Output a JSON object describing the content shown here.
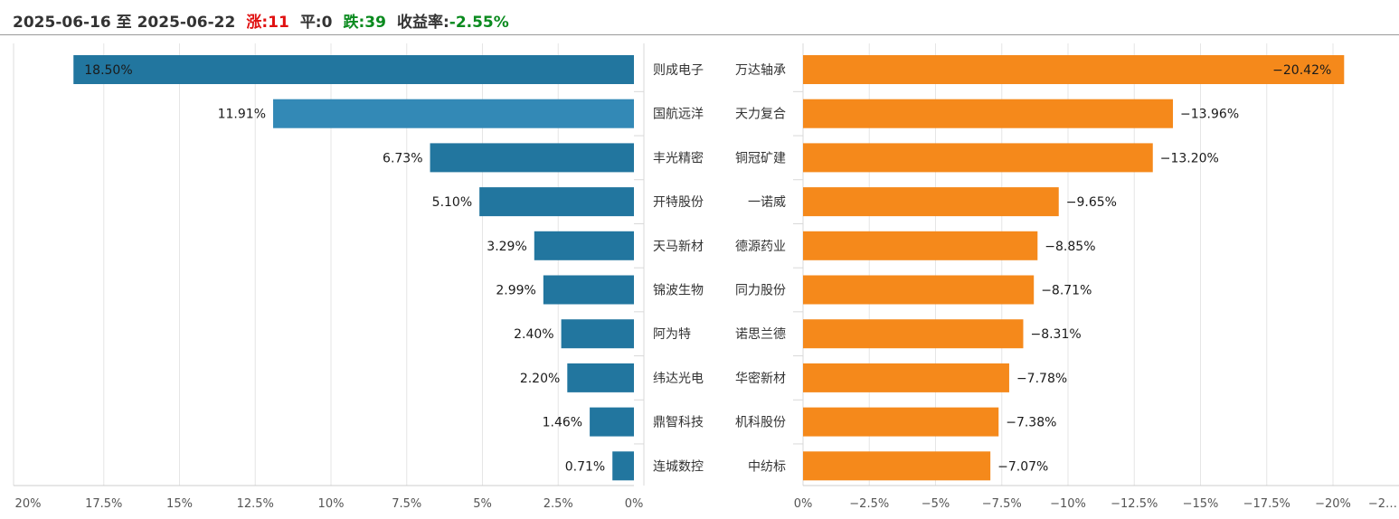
{
  "header": {
    "date_range": "2025-06-16 至 2025-06-22",
    "up_label": "涨:",
    "up_count": "11",
    "flat_label": "平:",
    "flat_count": "0",
    "down_label": "跌:",
    "down_count": "39",
    "return_label": "收益率:",
    "return_value": "-2.55%"
  },
  "chart_data": [
    {
      "type": "bar",
      "orientation": "horizontal",
      "direction": "leftward",
      "categories": [
        "则成电子",
        "国航远洋",
        "丰光精密",
        "开特股份",
        "天马新材",
        "锦波生物",
        "阿为特",
        "纬达光电",
        "鼎智科技",
        "连城数控"
      ],
      "values": [
        18.5,
        11.91,
        6.73,
        5.1,
        3.29,
        2.99,
        2.4,
        2.2,
        1.46,
        0.71
      ],
      "labels": [
        "18.50%",
        "11.91%",
        "6.73%",
        "5.10%",
        "3.29%",
        "2.99%",
        "2.40%",
        "2.20%",
        "1.46%",
        "0.71%"
      ],
      "xlim": [
        0,
        20
      ],
      "x_ticks": [
        "20%",
        "17.5%",
        "15%",
        "12.5%",
        "10%",
        "7.5%",
        "5%",
        "2.5%",
        "0%"
      ],
      "color": "#22769f",
      "highlight_color": "#3389b6",
      "grid": true
    },
    {
      "type": "bar",
      "orientation": "horizontal",
      "direction": "rightward",
      "categories": [
        "万达轴承",
        "天力复合",
        "铜冠矿建",
        "一诺威",
        "德源药业",
        "同力股份",
        "诺思兰德",
        "华密新材",
        "机科股份",
        "中纺标"
      ],
      "values": [
        -20.42,
        -13.96,
        -13.2,
        -9.65,
        -8.85,
        -8.71,
        -8.31,
        -7.78,
        -7.38,
        -7.07
      ],
      "labels": [
        "−20.42%",
        "−13.96%",
        "−13.20%",
        "−9.65%",
        "−8.85%",
        "−8.71%",
        "−8.31%",
        "−7.78%",
        "−7.38%",
        "−7.07%"
      ],
      "xlim": [
        0,
        -22.5
      ],
      "x_ticks": [
        "0%",
        "−2.5%",
        "−5%",
        "−7.5%",
        "−10%",
        "−12.5%",
        "−15%",
        "−17.5%",
        "−20%",
        "−2…"
      ],
      "color": "#f5891b",
      "grid": true
    }
  ]
}
